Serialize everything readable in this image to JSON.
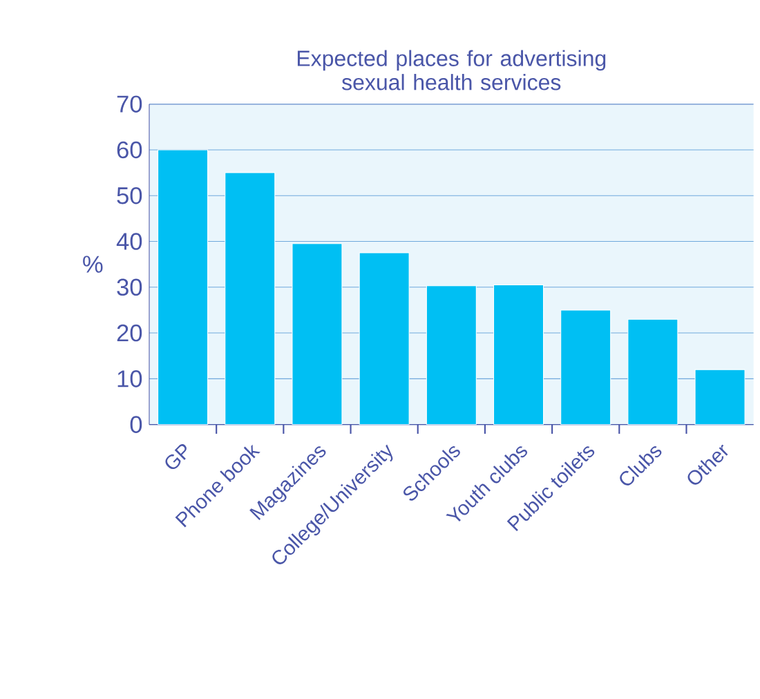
{
  "chart_data": {
    "type": "bar",
    "title": "Expected places for advertising sexual health services",
    "ylabel": "%",
    "categories": [
      "GP",
      "Phone book",
      "Magazines",
      "College/University",
      "Schools",
      "Youth clubs",
      "Public toilets",
      "Clubs",
      "Other"
    ],
    "values": [
      60,
      55,
      39.5,
      37.5,
      30.3,
      30.5,
      25,
      23,
      12
    ],
    "color": "#00bff3",
    "ylim": [
      0,
      70
    ],
    "yticks": [
      0,
      10,
      20,
      30,
      40,
      50,
      60,
      70
    ],
    "grid": "y"
  }
}
